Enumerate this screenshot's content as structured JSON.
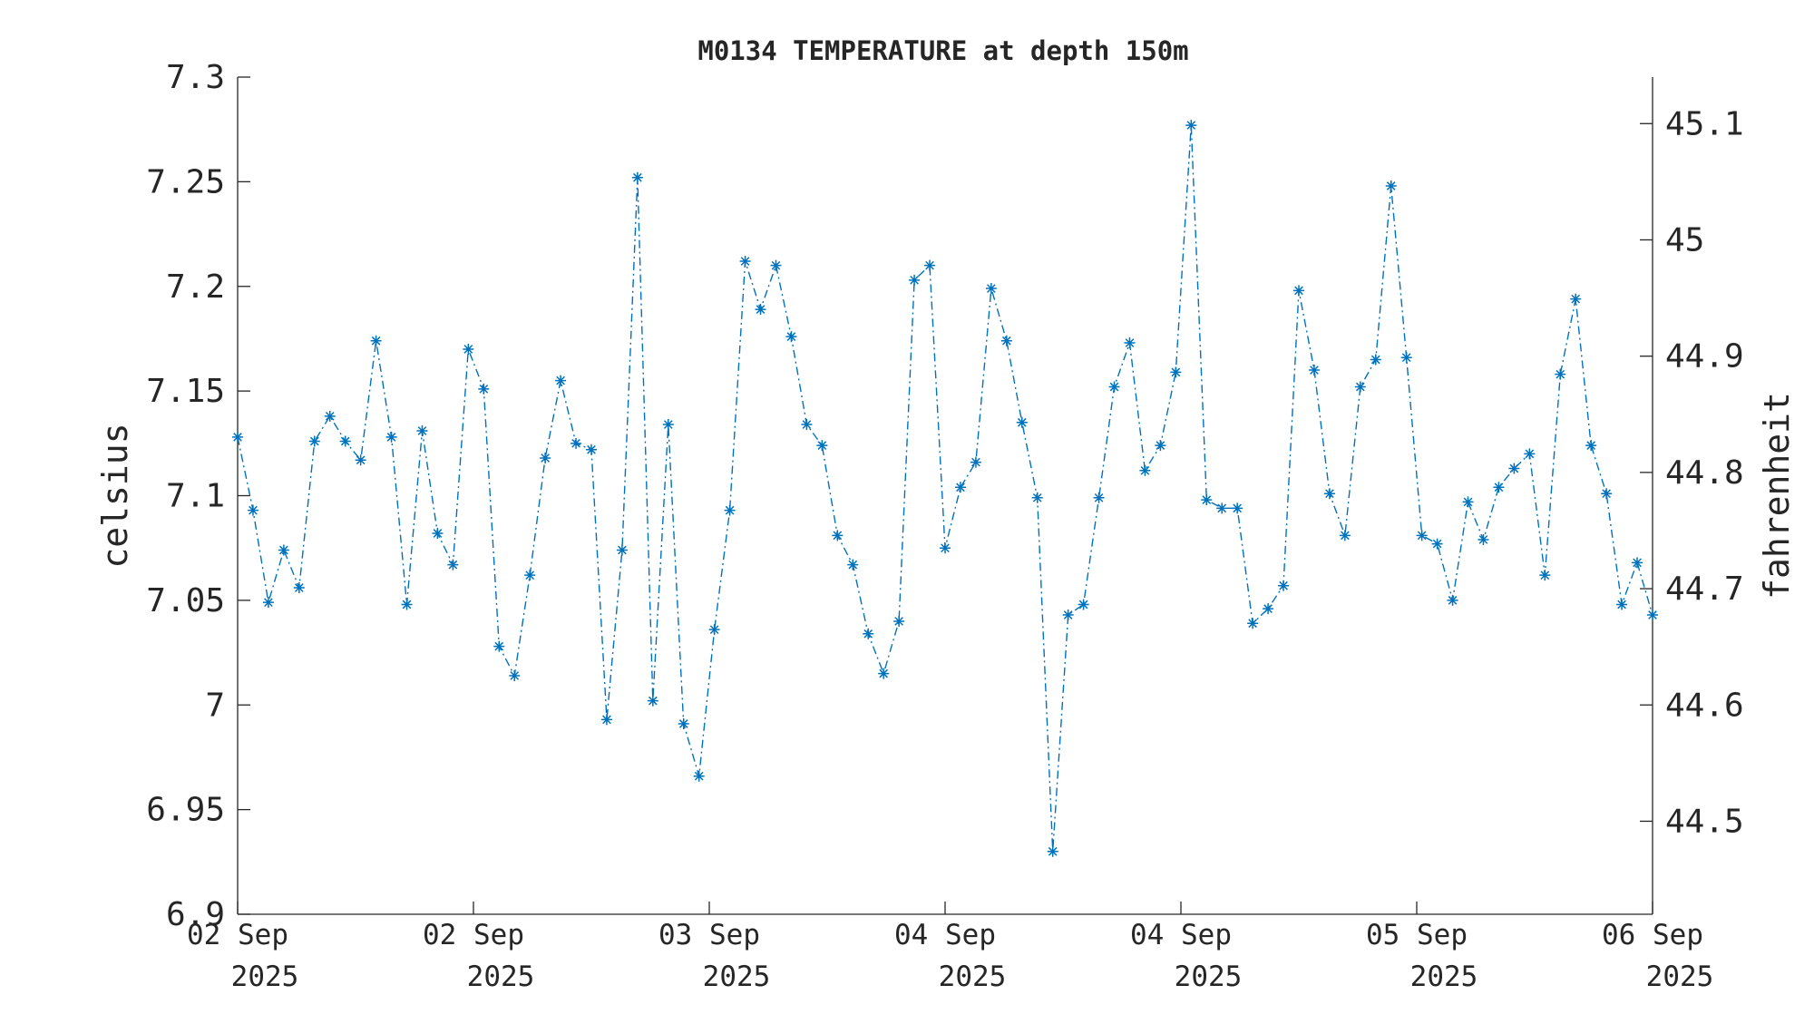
{
  "chart_data": {
    "type": "line",
    "title": "M0134 TEMPERATURE at depth 150m",
    "ylabel": "celsius",
    "y2label": "fahrenheit",
    "ylim": [
      6.9,
      7.3
    ],
    "y2lim": [
      44.42,
      45.14
    ],
    "grid": false,
    "legend": "none",
    "series_color": "#0072BD",
    "line_style": "dash-dot",
    "marker": "asterisk",
    "yticks": [
      "6.9",
      "6.95",
      "7",
      "7.05",
      "7.1",
      "7.15",
      "7.2",
      "7.25",
      "7.3"
    ],
    "ytick_values": [
      6.9,
      6.95,
      7.0,
      7.05,
      7.1,
      7.15,
      7.2,
      7.25,
      7.3
    ],
    "y2ticks": [
      "44.5",
      "44.6",
      "44.7",
      "44.8",
      "44.9",
      "45",
      "45.1"
    ],
    "y2tick_values": [
      44.5,
      44.6,
      44.7,
      44.8,
      44.9,
      45.0,
      45.1
    ],
    "xticks": [
      {
        "line1": "02 Sep",
        "line2": "2025"
      },
      {
        "line1": "02 Sep",
        "line2": "2025"
      },
      {
        "line1": "03 Sep",
        "line2": "2025"
      },
      {
        "line1": "04 Sep",
        "line2": "2025"
      },
      {
        "line1": "04 Sep",
        "line2": "2025"
      },
      {
        "line1": "05 Sep",
        "line2": "2025"
      },
      {
        "line1": "06 Sep",
        "line2": "2025"
      }
    ],
    "series": [
      {
        "values": [
          7.128,
          7.093,
          7.049,
          7.074,
          7.056,
          7.126,
          7.138,
          7.126,
          7.117,
          7.174,
          7.128,
          7.048,
          7.131,
          7.082,
          7.067,
          7.17,
          7.151,
          7.028,
          7.014,
          7.062,
          7.118,
          7.155,
          7.125,
          7.122,
          6.993,
          7.074,
          7.252,
          7.002,
          7.134,
          6.991,
          6.966,
          7.036,
          7.093,
          7.212,
          7.189,
          7.21,
          7.176,
          7.134,
          7.124,
          7.081,
          7.067,
          7.034,
          7.015,
          7.04,
          7.203,
          7.21,
          7.075,
          7.104,
          7.116,
          7.199,
          7.174,
          7.135,
          7.099,
          6.93,
          7.043,
          7.048,
          7.099,
          7.152,
          7.173,
          7.112,
          7.124,
          7.159,
          7.277,
          7.098,
          7.094,
          7.094,
          7.039,
          7.046,
          7.057,
          7.198,
          7.16,
          7.101,
          7.081,
          7.152,
          7.165,
          7.248,
          7.166,
          7.081,
          7.077,
          7.05,
          7.097,
          7.079,
          7.104,
          7.113,
          7.12,
          7.062,
          7.158,
          7.194,
          7.124,
          7.101,
          7.048,
          7.068,
          7.043
        ]
      }
    ]
  }
}
